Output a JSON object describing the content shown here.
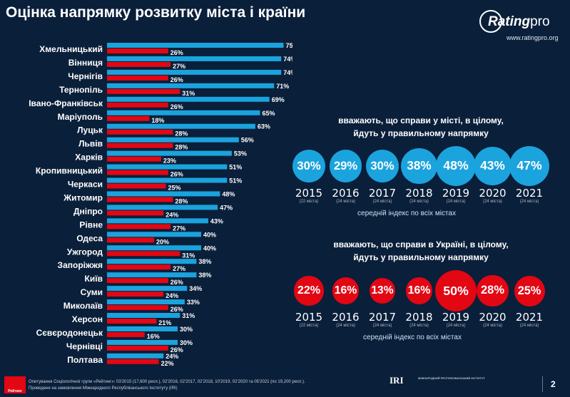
{
  "title": "Оцінка напрямку розвитку міста і країни",
  "logo": {
    "name": "Rating",
    "suffix": "pro",
    "url": "www.ratingpro.org"
  },
  "colors": {
    "city": "#1ba3dd",
    "country": "#e30613",
    "background": "#0a1f3a"
  },
  "chart_data": {
    "type": "bar",
    "orientation": "horizontal",
    "categories": [
      "Хмельницький",
      "Вінниця",
      "Чернігів",
      "Тернопіль",
      "Івано-Франківськ",
      "Маріуполь",
      "Луцьк",
      "Львів",
      "Харків",
      "Кропивницький",
      "Черкаси",
      "Житомир",
      "Дніпро",
      "Рівне",
      "Одеса",
      "Ужгород",
      "Запоріжжя",
      "Київ",
      "Суми",
      "Миколаїв",
      "Херсон",
      "Сєвєродонецьк",
      "Чернівці",
      "Полтава"
    ],
    "series": [
      {
        "values": [
          75,
          74,
          74,
          71,
          69,
          65,
          63,
          56,
          53,
          51,
          51,
          48,
          47,
          43,
          40,
          40,
          38,
          38,
          34,
          33,
          31,
          30,
          30,
          24
        ],
        "labels": [
          "75%",
          "74%",
          "74%",
          "71%",
          "69%",
          "65%",
          "63%",
          "56%",
          "53%",
          "51%",
          "51%",
          "48%",
          "47%",
          "43%",
          "40%",
          "40%",
          "38%",
          "38%",
          "34%",
          "33%",
          "31%",
          "30%",
          "30%",
          "24%"
        ]
      },
      {
        "values": [
          26,
          27,
          26,
          31,
          26,
          18,
          28,
          28,
          23,
          26,
          25,
          28,
          24,
          27,
          20,
          31,
          27,
          26,
          24,
          26,
          21,
          16,
          26,
          22
        ],
        "labels": [
          "26%",
          "27%",
          "26%",
          "31%",
          "26%",
          "18%",
          "28%",
          "28%",
          "23%",
          "26%",
          "25%",
          "28%",
          "24%",
          "27%",
          "20%",
          "31%",
          "27%",
          "26%",
          "24%",
          "26%",
          "21%",
          "16%",
          "26%",
          "22%"
        ]
      }
    ]
  },
  "city_stats": {
    "heading_1": "вважають, що справи у ",
    "heading_highlight": "місті",
    "heading_2": ", в цілому,",
    "heading_3": "йдуть у правильному напрямку",
    "items": [
      {
        "value": 30,
        "label": "30%",
        "year": "2015",
        "note": "(22 міста)"
      },
      {
        "value": 29,
        "label": "29%",
        "year": "2016",
        "note": "(24 міста)"
      },
      {
        "value": 30,
        "label": "30%",
        "year": "2017",
        "note": "(24 міста)"
      },
      {
        "value": 38,
        "label": "38%",
        "year": "2018",
        "note": "(24 міста)"
      },
      {
        "value": 48,
        "label": "48%",
        "year": "2019",
        "note": "(24 міста)"
      },
      {
        "value": 43,
        "label": "43%",
        "year": "2020",
        "note": "(24 міста)"
      },
      {
        "value": 47,
        "label": "47%",
        "year": "2021",
        "note": "(24 міста)"
      }
    ],
    "avg_label": "середній індекс по всіх містах"
  },
  "country_stats": {
    "heading_1": "вважають, що справи в ",
    "heading_highlight": "Україні",
    "heading_2": ", в цілому,",
    "heading_3": "йдуть у правильному напрямку",
    "items": [
      {
        "value": 22,
        "label": "22%",
        "year": "2015",
        "note": "(22 міста)"
      },
      {
        "value": 16,
        "label": "16%",
        "year": "2016",
        "note": "(24 міста)"
      },
      {
        "value": 13,
        "label": "13%",
        "year": "2017",
        "note": "(24 міста)"
      },
      {
        "value": 16,
        "label": "16%",
        "year": "2018",
        "note": "(24 міста)"
      },
      {
        "value": 50,
        "label": "50%",
        "year": "2019",
        "note": "(24 міста)"
      },
      {
        "value": 28,
        "label": "28%",
        "year": "2020",
        "note": "(24 міста)"
      },
      {
        "value": 25,
        "label": "25%",
        "year": "2021",
        "note": "(24 міста)"
      }
    ],
    "avg_label": "середній індекс по всіх містах"
  },
  "footer": {
    "brand": "Рейтинг",
    "line1": "Опитування Соціологічної групи «Рейтинг»: 03'2015 (17,600 респ.), 02'2016, 02'2017, 02'2018, 10'2019, 02'2020 та 05'2021 (по 19,200 респ.).",
    "line2": "Проведене на замовлення Міжнародного Республіканського Інституту (IRI)"
  },
  "iri": {
    "name": "IRI",
    "sub": "МІЖНАРОДНИЙ РЕСПУБЛІКАНСЬКИЙ ІНСТИТУТ"
  },
  "page_number": "2"
}
